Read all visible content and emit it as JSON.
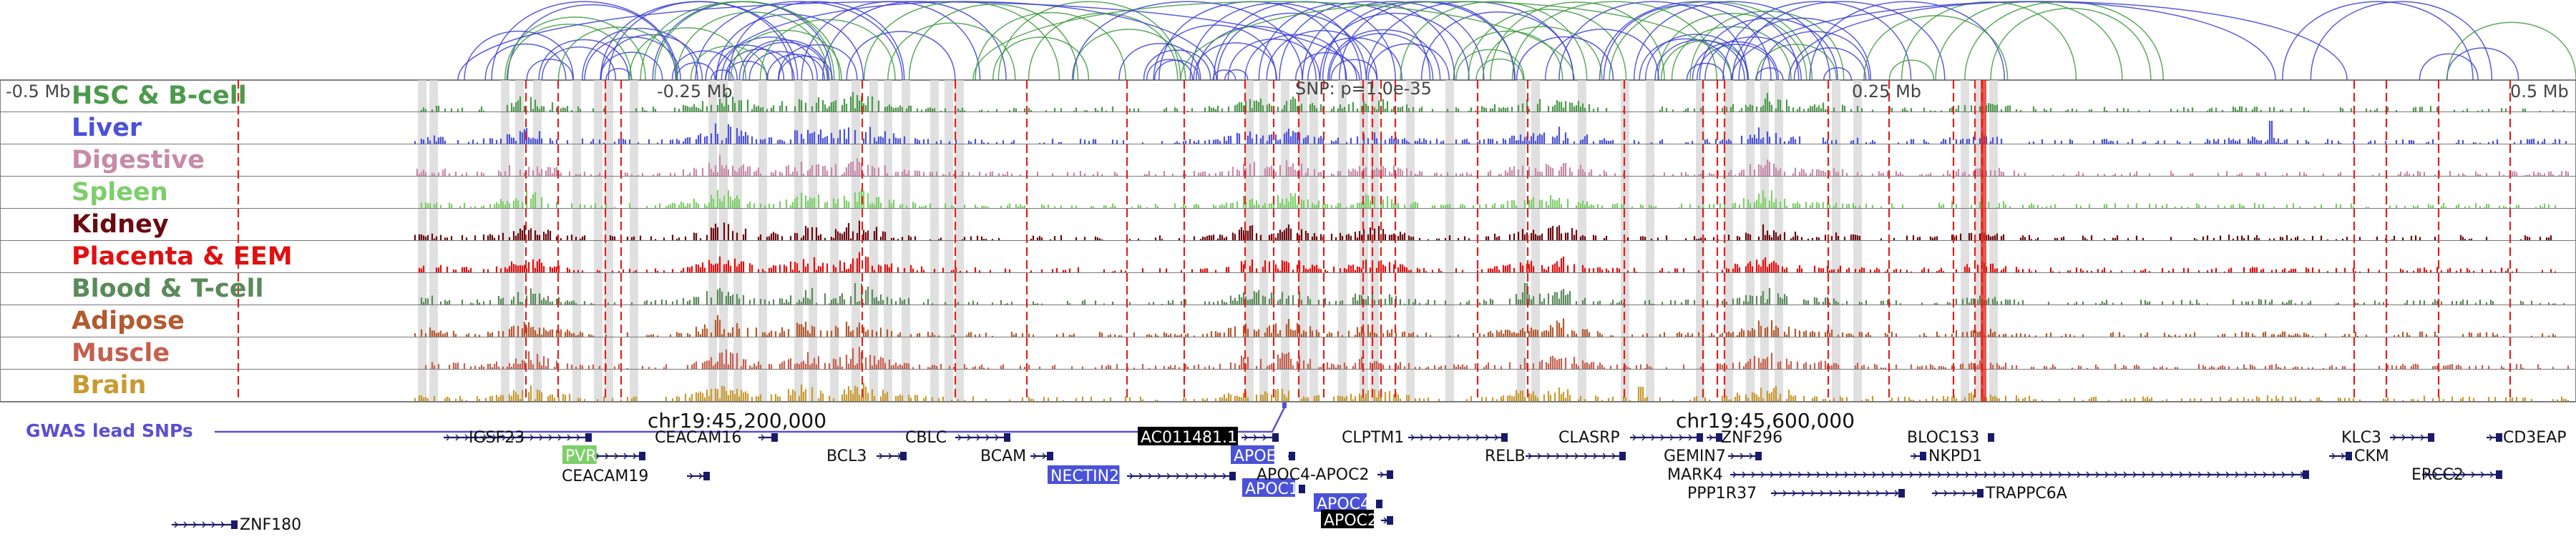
{
  "axis": {
    "left_label": "-0.5 Mb",
    "mid_left_label": "-0.25 Mb",
    "snp_label": "SNP: p=1.0e-35",
    "mid_right_label": "0.25 Mb",
    "right_label": "0.5 Mb"
  },
  "coordinates": {
    "left": "chr19:45,200,000",
    "right": "chr19:45,600,000"
  },
  "gwas_label": "GWAS lead SNPs",
  "tracks": [
    {
      "label": "HSC & B-cell",
      "color": "#4c9a4c"
    },
    {
      "label": "Liver",
      "color": "#4a52d8"
    },
    {
      "label": "Digestive",
      "color": "#c78aa8"
    },
    {
      "label": "Spleen",
      "color": "#7ccf68"
    },
    {
      "label": "Kidney",
      "color": "#6a0a10"
    },
    {
      "label": "Placenta & EEM",
      "color": "#e01010"
    },
    {
      "label": "Blood & T-cell",
      "color": "#5a8a5a"
    },
    {
      "label": "Adipose",
      "color": "#b25a30"
    },
    {
      "label": "Muscle",
      "color": "#c46050"
    },
    {
      "label": "Brain",
      "color": "#c89a30"
    }
  ],
  "genes": [
    {
      "name": "IGSF23",
      "style": "plain"
    },
    {
      "name": "PVR",
      "style": "green"
    },
    {
      "name": "CEACAM19",
      "style": "plain"
    },
    {
      "name": "CEACAM16",
      "style": "plain"
    },
    {
      "name": "BCL3",
      "style": "plain"
    },
    {
      "name": "CBLC",
      "style": "plain"
    },
    {
      "name": "BCAM",
      "style": "plain"
    },
    {
      "name": "NECTIN2",
      "style": "blue"
    },
    {
      "name": "AC011481.1",
      "style": "black"
    },
    {
      "name": "APOE",
      "style": "blue"
    },
    {
      "name": "APOC1",
      "style": "blue"
    },
    {
      "name": "APOC4",
      "style": "blue"
    },
    {
      "name": "APOC2",
      "style": "black"
    },
    {
      "name": "APOC4-APOC2",
      "style": "plain"
    },
    {
      "name": "CLPTM1",
      "style": "plain"
    },
    {
      "name": "RELB",
      "style": "plain"
    },
    {
      "name": "CLASRP",
      "style": "plain"
    },
    {
      "name": "ZNF296",
      "style": "plain"
    },
    {
      "name": "GEMIN7",
      "style": "plain"
    },
    {
      "name": "MARK4",
      "style": "plain"
    },
    {
      "name": "PPP1R37",
      "style": "plain"
    },
    {
      "name": "BLOC1S3",
      "style": "plain"
    },
    {
      "name": "NKPD1",
      "style": "plain"
    },
    {
      "name": "TRAPPC6A",
      "style": "plain"
    },
    {
      "name": "KLC3",
      "style": "plain"
    },
    {
      "name": "CKM",
      "style": "plain"
    },
    {
      "name": "ERCC2",
      "style": "plain"
    },
    {
      "name": "CD3EAP",
      "style": "plain"
    },
    {
      "name": "ZNF180",
      "style": "plain"
    }
  ]
}
